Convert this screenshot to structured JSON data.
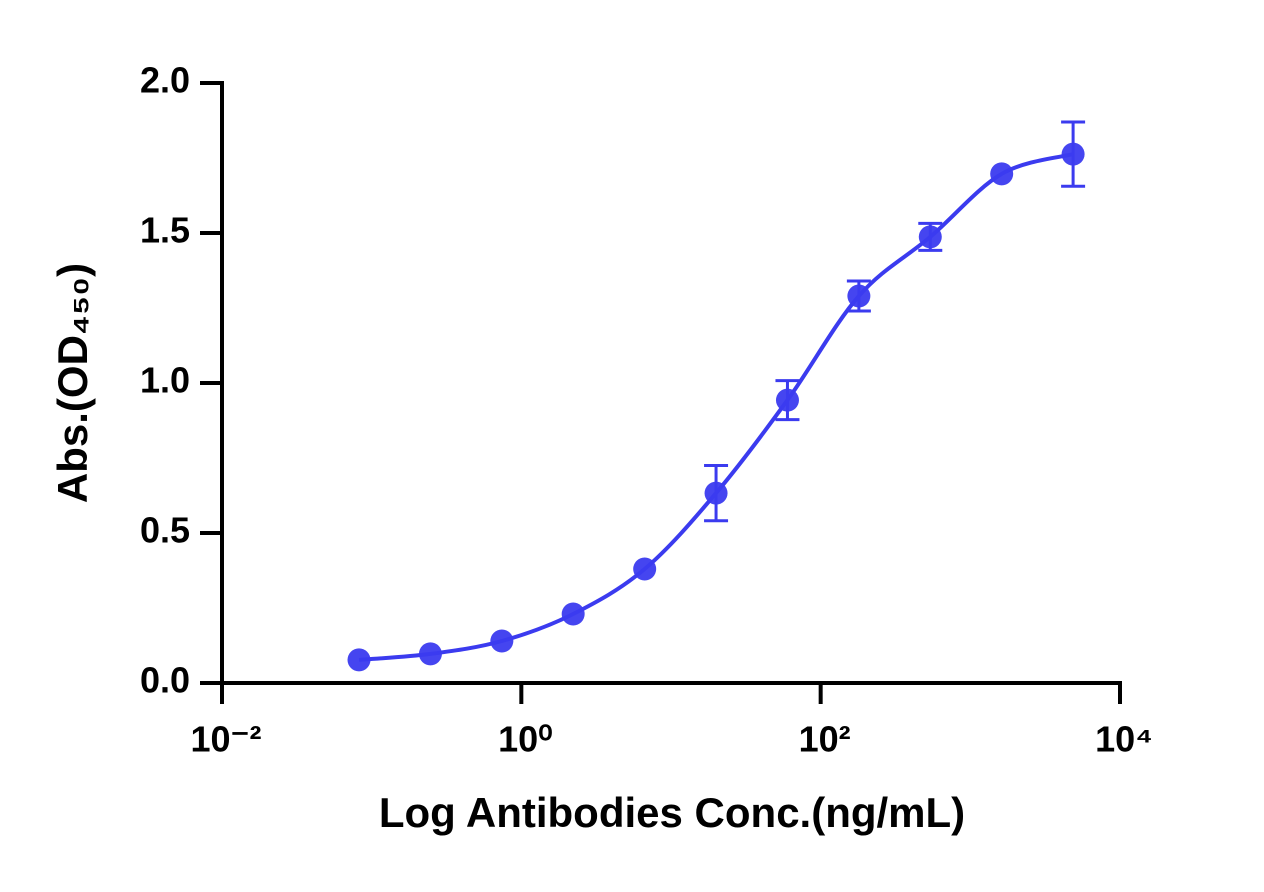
{
  "chart_data": {
    "type": "scatter",
    "x_label": "Log Antibodies Conc.(ng/mL)",
    "y_label": "Abs.(OD₄₅₀)",
    "x_scale": "log",
    "xlim": [
      0.01,
      10000
    ],
    "xticks": [
      {
        "value": 0.01,
        "label": "10⁻²"
      },
      {
        "value": 1,
        "label": "10⁰"
      },
      {
        "value": 100,
        "label": "10²"
      },
      {
        "value": 10000,
        "label": "10⁴"
      }
    ],
    "ylim": [
      0,
      2
    ],
    "yticks": [
      {
        "value": 0,
        "label": "0.0"
      },
      0.5,
      {
        "value": 1,
        "label": "1.0"
      },
      1.5,
      {
        "value": 2,
        "label": "2.0"
      }
    ],
    "series": [
      {
        "color": "#3b3bef",
        "x": [
          0.0823,
          0.247,
          0.741,
          2.22,
          6.67,
          20,
          60,
          180,
          540,
          1620,
          4860
        ],
        "values": [
          0.077,
          0.097,
          0.14,
          0.23,
          0.38,
          0.633,
          0.943,
          1.29,
          1.487,
          1.697,
          1.763
        ],
        "errors": [
          null,
          null,
          null,
          null,
          null,
          0.092,
          0.065,
          0.05,
          0.045,
          null,
          0.107
        ]
      }
    ]
  }
}
